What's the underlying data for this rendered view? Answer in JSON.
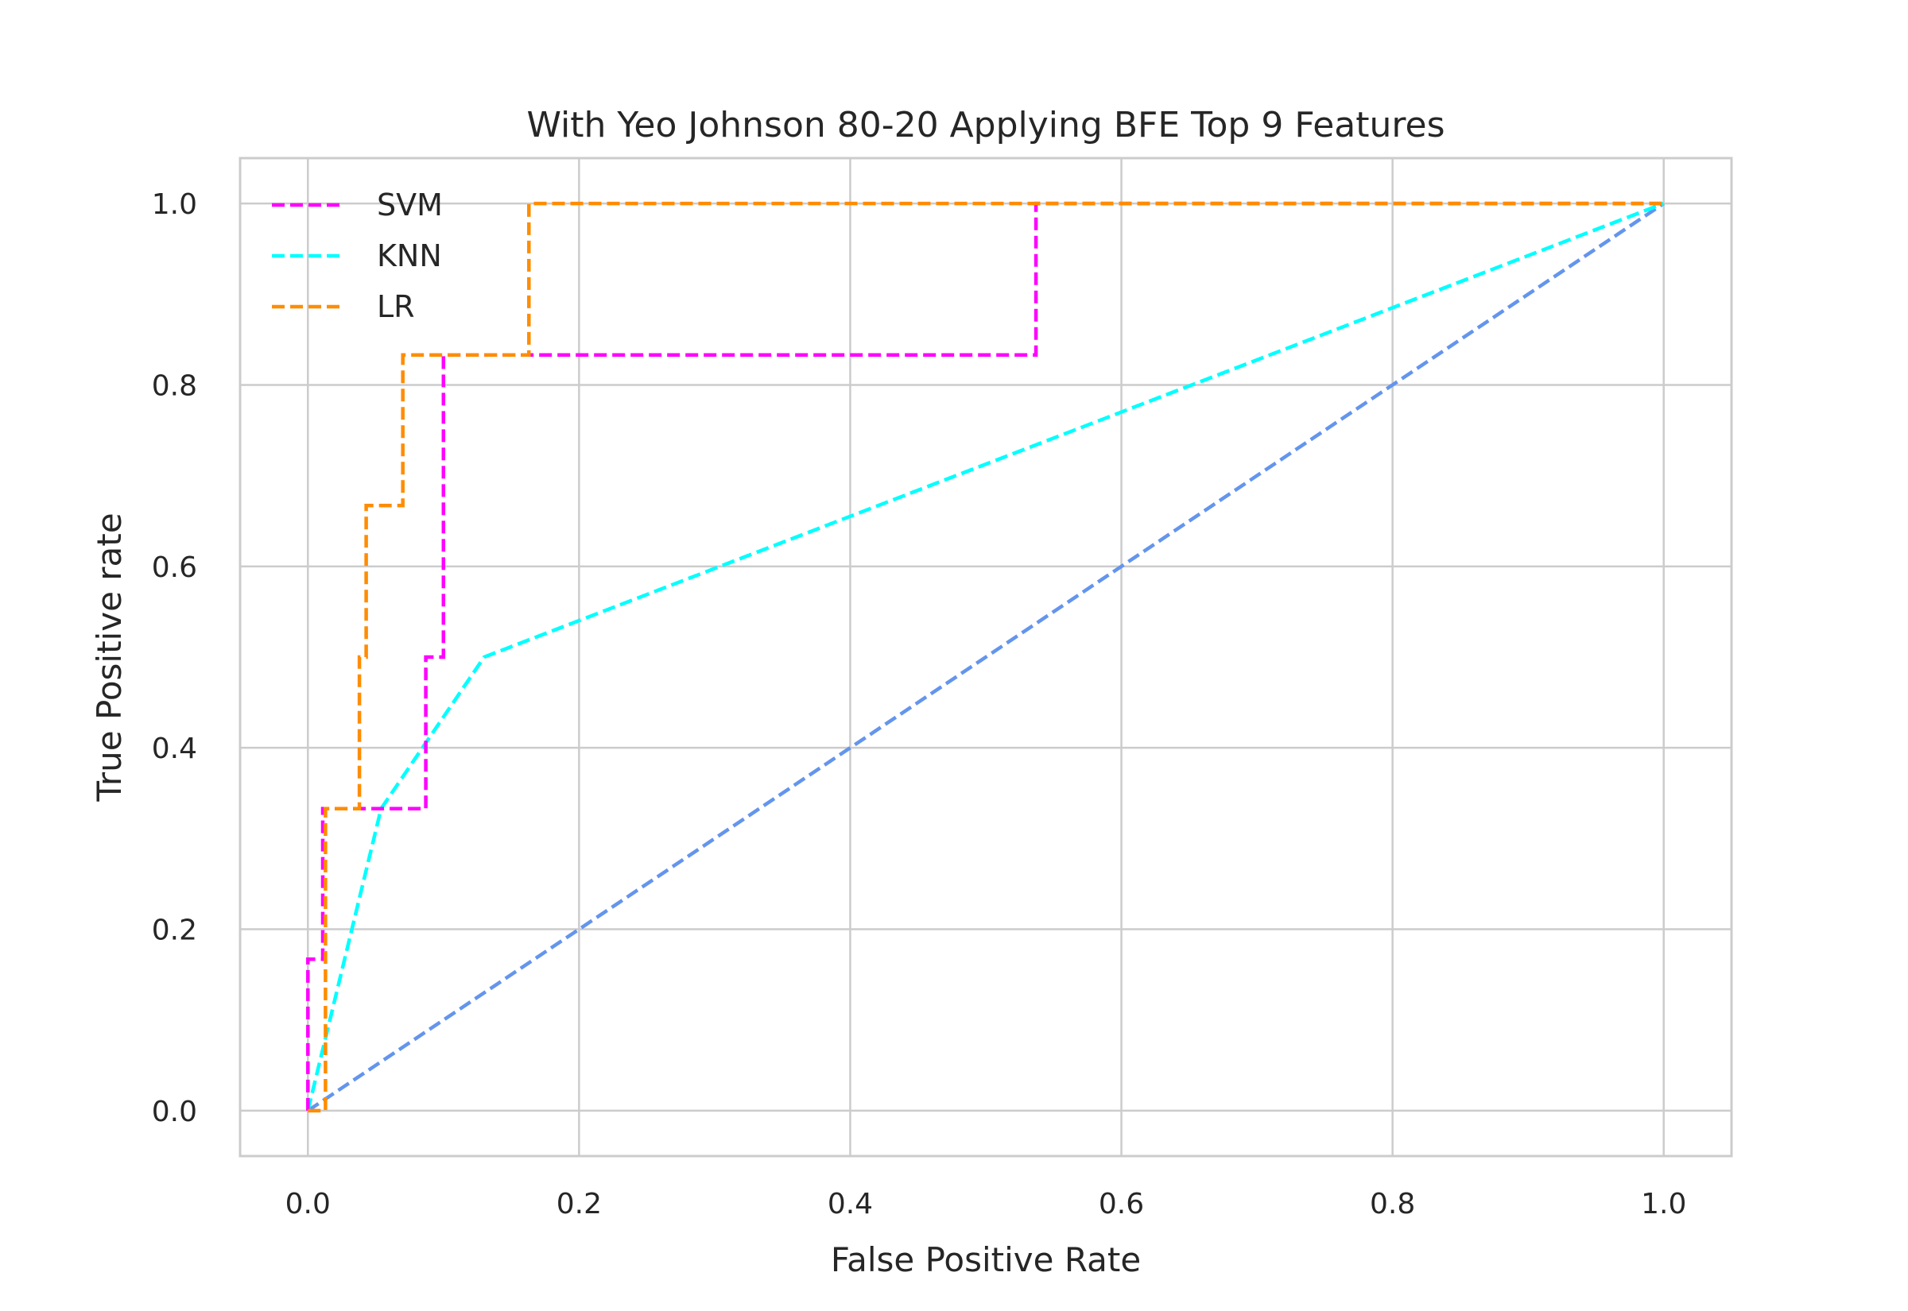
{
  "chart_data": {
    "type": "line",
    "title": "With Yeo Johnson 80-20 Applying BFE Top 9 Features",
    "xlabel": "False Positive Rate",
    "ylabel": "True Positive rate",
    "xlim": [
      -0.05,
      1.05
    ],
    "ylim": [
      -0.05,
      1.05
    ],
    "xticks": [
      "0.0",
      "0.2",
      "0.4",
      "0.6",
      "0.8",
      "1.0"
    ],
    "yticks": [
      "0.0",
      "0.2",
      "0.4",
      "0.6",
      "0.8",
      "1.0"
    ],
    "grid": true,
    "legend_position": "top-left",
    "series": [
      {
        "name": "SVM",
        "color": "#ff00ff",
        "dashed": true,
        "x": [
          0.0,
          0.0,
          0.011,
          0.011,
          0.087,
          0.087,
          0.1,
          0.1,
          0.537,
          0.537,
          1.0
        ],
        "y": [
          0.0,
          0.167,
          0.167,
          0.333,
          0.333,
          0.5,
          0.5,
          0.833,
          0.833,
          1.0,
          1.0
        ]
      },
      {
        "name": "KNN",
        "color": "#00ffff",
        "dashed": true,
        "x": [
          0.0,
          0.054,
          0.13,
          1.0
        ],
        "y": [
          0.0,
          0.333,
          0.5,
          1.0
        ]
      },
      {
        "name": "LR",
        "color": "#ff8c00",
        "dashed": true,
        "x": [
          0.0,
          0.013,
          0.013,
          0.038,
          0.038,
          0.043,
          0.043,
          0.07,
          0.07,
          0.163,
          0.163,
          1.0
        ],
        "y": [
          0.0,
          0.0,
          0.333,
          0.333,
          0.5,
          0.5,
          0.667,
          0.667,
          0.833,
          0.833,
          1.0,
          1.0
        ]
      },
      {
        "name": "",
        "color": "#6495ed",
        "dashed": true,
        "x": [
          0.0,
          1.0
        ],
        "y": [
          0.0,
          1.0
        ]
      }
    ]
  }
}
